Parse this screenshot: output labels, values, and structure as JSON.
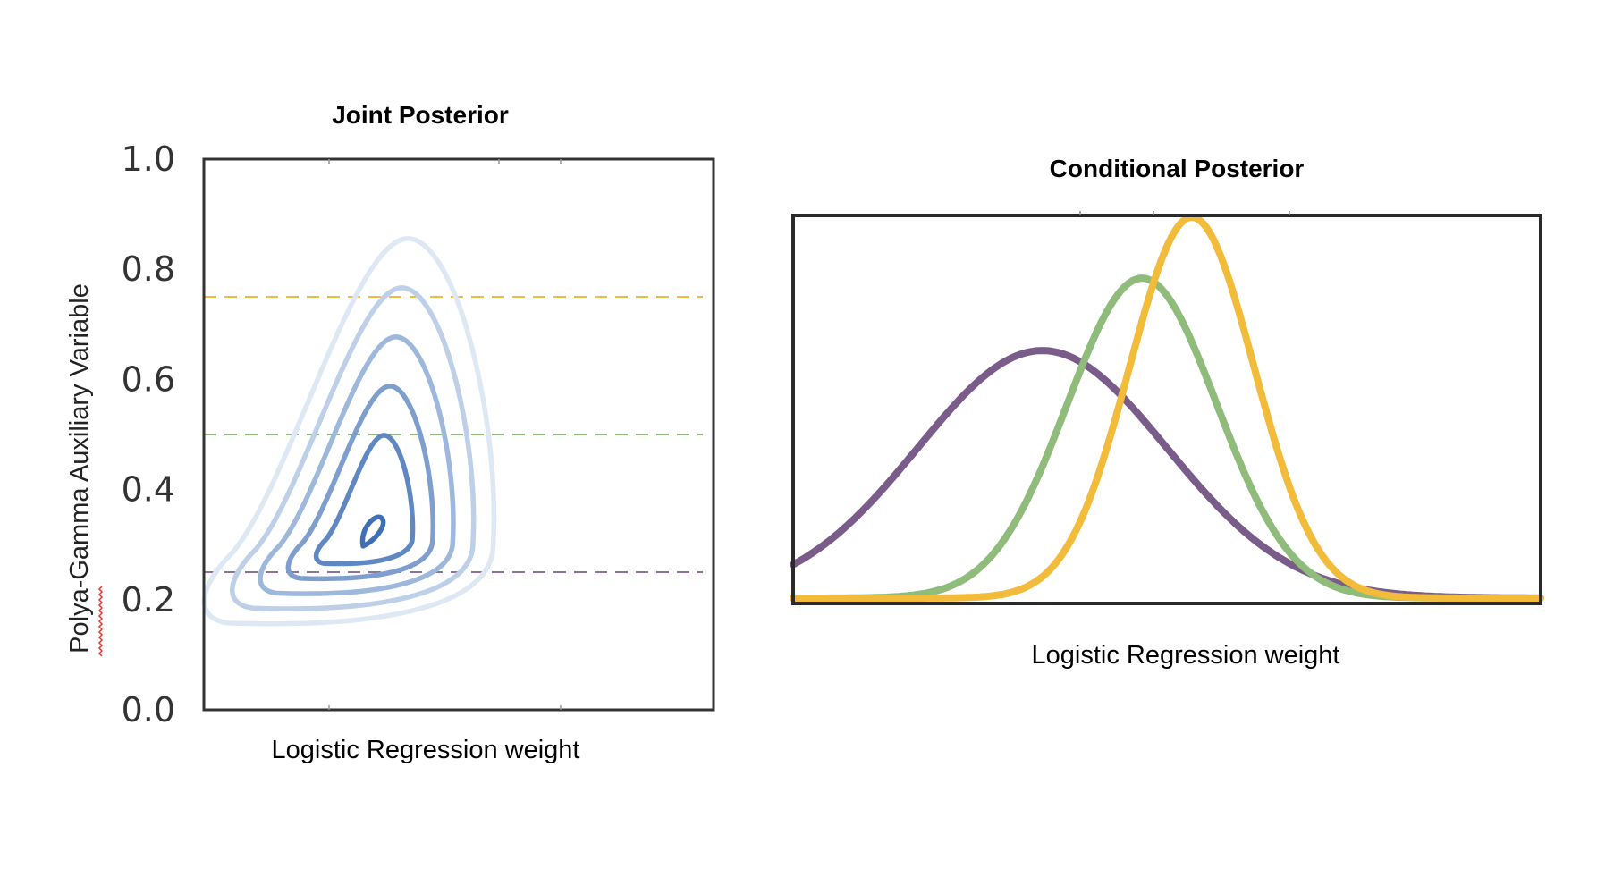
{
  "chart_data": [
    {
      "type": "contour",
      "title": "Joint Posterior",
      "xlabel": "Logistic Regression weight",
      "ylabel": "Polya-Gamma Auxiliary Variable",
      "ylim": [
        0.0,
        1.0
      ],
      "yticks": [
        "0.0",
        "0.2",
        "0.4",
        "0.6",
        "0.8",
        "1.0"
      ],
      "xticks_labeled": false,
      "grid": false,
      "contour_levels": 6,
      "mode": {
        "x": 0.42,
        "y": 0.32
      },
      "contour_color_light": "#dde8f4",
      "contour_color_dark": "#3f6fb5",
      "reference_lines": [
        {
          "y": 0.75,
          "color": "#f2bb3a",
          "style": "dashed"
        },
        {
          "y": 0.5,
          "color": "#8fbb7b",
          "style": "dashed"
        },
        {
          "y": 0.25,
          "color": "#8b7399",
          "style": "dashed"
        }
      ]
    },
    {
      "type": "line",
      "title": "Conditional Posterior",
      "xlabel": "Logistic Regression weight",
      "ylabel": "",
      "xticks_labeled": false,
      "yticks_labeled": false,
      "grid": false,
      "series": [
        {
          "color": "#7a5c8a",
          "mean": -0.5,
          "sd": 1.0,
          "peak": 0.65
        },
        {
          "color": "#8fbb7b",
          "mean": 0.3,
          "sd": 0.6,
          "peak": 0.84
        },
        {
          "color": "#f2bb3a",
          "mean": 0.7,
          "sd": 0.5,
          "peak": 1.0
        }
      ],
      "xlim": [
        -2.5,
        3.5
      ],
      "ylim": [
        0,
        1.0
      ]
    }
  ]
}
